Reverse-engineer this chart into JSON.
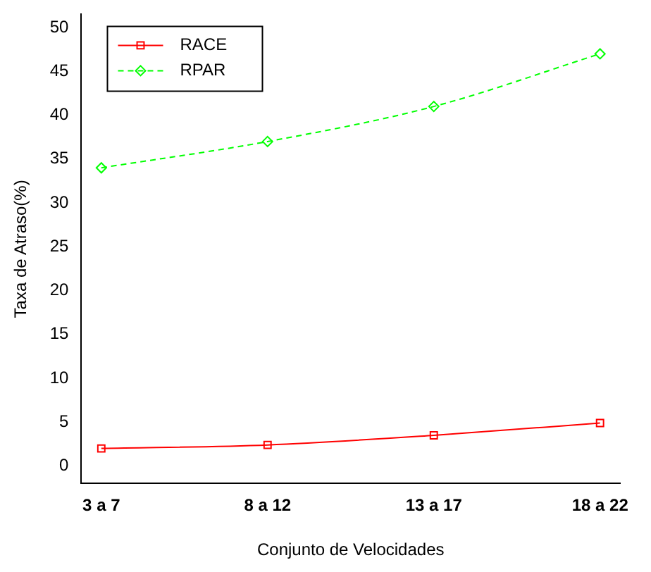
{
  "chart_data": {
    "type": "line",
    "xlabel": "Conjunto de Velocidades",
    "ylabel": "Taxa de Atraso(%)",
    "categories": [
      "3 a 7",
      "8 a 12",
      "13 a 17",
      "18 a 22"
    ],
    "series": [
      {
        "name": "RACE",
        "color": "#ff0000",
        "values": [
          2,
          2.4,
          3.5,
          4.9
        ],
        "marker": "square",
        "line_style": "solid"
      },
      {
        "name": "RPAR",
        "color": "#00ff00",
        "values": [
          34,
          37,
          41,
          47
        ],
        "marker": "diamond",
        "line_style": "dashed"
      }
    ],
    "ylim": [
      -2,
      51.5
    ],
    "yticks": [
      0,
      5,
      10,
      15,
      20,
      25,
      30,
      35,
      40,
      45,
      50
    ],
    "grid": false,
    "legend": "top left"
  }
}
